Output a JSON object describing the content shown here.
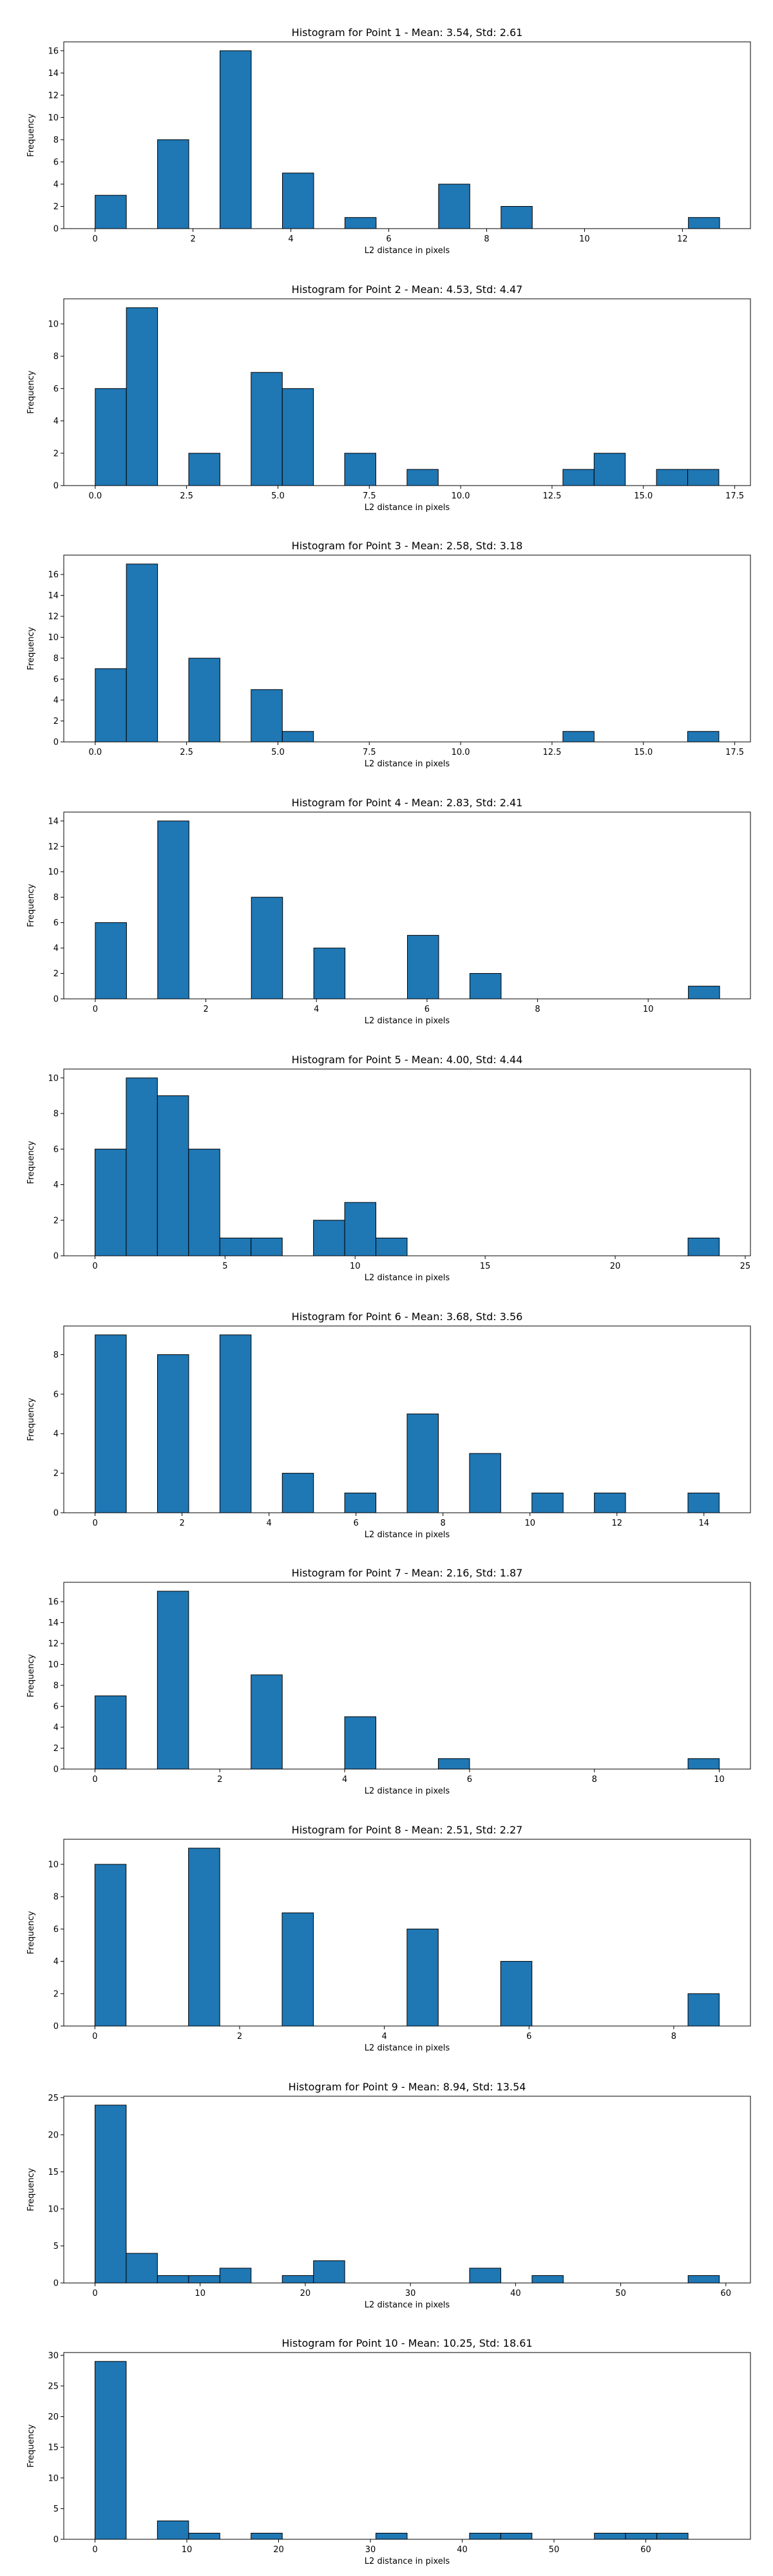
{
  "chart_data": [
    {
      "type": "bar",
      "title": "Histogram for Point 1 - Mean: 3.54, Std: 2.61",
      "xlabel": "L2 distance in pixels",
      "ylabel": "Frequency",
      "xlim": [
        -0.64,
        13.39
      ],
      "ylim": [
        0,
        16.8
      ],
      "xticks": [
        0,
        2,
        4,
        6,
        8,
        10,
        12
      ],
      "yticks": [
        0,
        2,
        4,
        6,
        8,
        10,
        12,
        14,
        16
      ],
      "bin_edges": [
        0.0,
        0.638,
        1.276,
        1.914,
        2.552,
        3.19,
        3.828,
        4.466,
        5.104,
        5.742,
        6.38,
        7.018,
        7.656,
        8.294,
        8.932,
        9.57,
        10.208,
        10.846,
        11.484,
        12.122,
        12.76
      ],
      "counts": [
        3,
        0,
        8,
        0,
        16,
        0,
        5,
        0,
        1,
        0,
        0,
        4,
        0,
        2,
        0,
        0,
        0,
        0,
        0,
        1
      ]
    },
    {
      "type": "bar",
      "title": "Histogram for Point 2 - Mean: 4.53, Std: 4.47",
      "xlabel": "L2 distance in pixels",
      "ylabel": "Frequency",
      "xlim": [
        -0.86,
        17.93
      ],
      "ylim": [
        0,
        11.55
      ],
      "xticks": [
        0.0,
        2.5,
        5.0,
        7.5,
        10.0,
        12.5,
        15.0,
        17.5
      ],
      "yticks": [
        0,
        2,
        4,
        6,
        8,
        10
      ],
      "bin_edges": [
        0.0,
        0.853,
        1.707,
        2.56,
        3.413,
        4.266,
        5.12,
        5.973,
        6.826,
        7.679,
        8.533,
        9.386,
        10.239,
        11.092,
        11.946,
        12.799,
        13.652,
        14.505,
        15.359,
        16.212,
        17.065
      ],
      "counts": [
        6,
        11,
        0,
        2,
        0,
        7,
        6,
        0,
        2,
        0,
        1,
        0,
        0,
        0,
        0,
        1,
        2,
        0,
        1,
        1
      ]
    },
    {
      "type": "bar",
      "title": "Histogram for Point 3 - Mean: 2.58, Std: 3.18",
      "xlabel": "L2 distance in pixels",
      "ylabel": "Frequency",
      "xlim": [
        -0.86,
        17.93
      ],
      "ylim": [
        0,
        17.85
      ],
      "xticks": [
        0.0,
        2.5,
        5.0,
        7.5,
        10.0,
        12.5,
        15.0,
        17.5
      ],
      "yticks": [
        0,
        2,
        4,
        6,
        8,
        10,
        12,
        14,
        16
      ],
      "bin_edges": [
        0.0,
        0.853,
        1.707,
        2.56,
        3.413,
        4.266,
        5.12,
        5.973,
        6.826,
        7.679,
        8.533,
        9.386,
        10.239,
        11.092,
        11.946,
        12.799,
        13.652,
        14.505,
        15.359,
        16.212,
        17.065
      ],
      "counts": [
        7,
        17,
        0,
        8,
        0,
        5,
        1,
        0,
        0,
        0,
        0,
        0,
        0,
        0,
        0,
        1,
        0,
        0,
        0,
        1
      ]
    },
    {
      "type": "bar",
      "title": "Histogram for Point 4 - Mean: 2.83, Std: 2.41",
      "xlabel": "L2 distance in pixels",
      "ylabel": "Frequency",
      "xlim": [
        -0.57,
        11.85
      ],
      "ylim": [
        0,
        14.7
      ],
      "xticks": [
        0,
        2,
        4,
        6,
        8,
        10
      ],
      "yticks": [
        0,
        2,
        4,
        6,
        8,
        10,
        12,
        14
      ],
      "bin_edges": [
        0.0,
        0.565,
        1.129,
        1.694,
        2.258,
        2.823,
        3.388,
        3.952,
        4.517,
        5.081,
        5.646,
        6.211,
        6.775,
        7.34,
        7.904,
        8.469,
        9.034,
        9.598,
        10.163,
        10.727,
        11.292
      ],
      "counts": [
        6,
        0,
        14,
        0,
        0,
        8,
        0,
        4,
        0,
        0,
        5,
        0,
        2,
        0,
        0,
        0,
        0,
        0,
        0,
        1
      ]
    },
    {
      "type": "bar",
      "title": "Histogram for Point 5 - Mean: 4.00, Std: 4.44",
      "xlabel": "L2 distance in pixels",
      "ylabel": "Frequency",
      "xlim": [
        -1.2,
        25.2
      ],
      "ylim": [
        0,
        10.5
      ],
      "xticks": [
        0,
        5,
        10,
        15,
        20,
        25
      ],
      "yticks": [
        0,
        2,
        4,
        6,
        8,
        10
      ],
      "bin_edges": [
        0.0,
        1.2,
        2.4,
        3.6,
        4.8,
        6.0,
        7.2,
        8.4,
        9.6,
        10.8,
        12.0,
        13.2,
        14.4,
        15.6,
        16.8,
        18.0,
        19.2,
        20.4,
        21.6,
        22.8,
        24.0
      ],
      "counts": [
        6,
        10,
        9,
        6,
        1,
        1,
        0,
        2,
        3,
        1,
        0,
        0,
        0,
        0,
        0,
        0,
        0,
        0,
        0,
        1
      ]
    },
    {
      "type": "bar",
      "title": "Histogram for Point 6 - Mean: 3.68, Std: 3.56",
      "xlabel": "L2 distance in pixels",
      "ylabel": "Frequency",
      "xlim": [
        -0.72,
        15.07
      ],
      "ylim": [
        0,
        9.45
      ],
      "xticks": [
        0,
        2,
        4,
        6,
        8,
        10,
        12,
        14
      ],
      "yticks": [
        0,
        2,
        4,
        6,
        8
      ],
      "bin_edges": [
        0.0,
        0.718,
        1.435,
        2.153,
        2.87,
        3.588,
        4.305,
        5.023,
        5.74,
        6.458,
        7.175,
        7.893,
        8.61,
        9.328,
        10.045,
        10.763,
        11.48,
        12.198,
        12.915,
        13.633,
        14.35
      ],
      "counts": [
        9,
        0,
        8,
        0,
        9,
        0,
        2,
        0,
        1,
        0,
        5,
        0,
        3,
        0,
        1,
        0,
        1,
        0,
        0,
        1
      ]
    },
    {
      "type": "bar",
      "title": "Histogram for Point 7 - Mean: 2.16, Std: 1.87",
      "xlabel": "L2 distance in pixels",
      "ylabel": "Frequency",
      "xlim": [
        -0.5,
        10.5
      ],
      "ylim": [
        0,
        17.85
      ],
      "xticks": [
        0,
        2,
        4,
        6,
        8,
        10
      ],
      "yticks": [
        0,
        2,
        4,
        6,
        8,
        10,
        12,
        14,
        16
      ],
      "bin_edges": [
        0.0,
        0.5,
        1.0,
        1.5,
        2.0,
        2.5,
        3.0,
        3.5,
        4.0,
        4.5,
        5.0,
        5.5,
        6.0,
        6.5,
        7.0,
        7.5,
        8.0,
        8.5,
        9.0,
        9.5,
        10.0
      ],
      "counts": [
        7,
        0,
        17,
        0,
        0,
        9,
        0,
        0,
        5,
        0,
        0,
        1,
        0,
        0,
        0,
        0,
        0,
        0,
        0,
        1
      ]
    },
    {
      "type": "bar",
      "title": "Histogram for Point 8 - Mean: 2.51, Std: 2.27",
      "xlabel": "L2 distance in pixels",
      "ylabel": "Frequency",
      "xlim": [
        -0.43,
        9.06
      ],
      "ylim": [
        0,
        11.55
      ],
      "xticks": [
        0,
        2,
        4,
        6,
        8
      ],
      "yticks": [
        0,
        2,
        4,
        6,
        8,
        10
      ],
      "bin_edges": [
        0.0,
        0.431,
        0.863,
        1.294,
        1.726,
        2.157,
        2.588,
        3.02,
        3.451,
        3.883,
        4.314,
        4.745,
        5.177,
        5.608,
        6.04,
        6.471,
        6.902,
        7.334,
        7.765,
        8.197,
        8.628
      ],
      "counts": [
        10,
        0,
        0,
        11,
        0,
        0,
        7,
        0,
        0,
        0,
        6,
        0,
        0,
        4,
        0,
        0,
        0,
        0,
        0,
        2
      ]
    },
    {
      "type": "bar",
      "title": "Histogram for Point 9 - Mean: 8.94, Std: 13.54",
      "xlabel": "L2 distance in pixels",
      "ylabel": "Frequency",
      "xlim": [
        -2.97,
        62.34
      ],
      "ylim": [
        0,
        25.2
      ],
      "xticks": [
        0,
        10,
        20,
        30,
        40,
        50,
        60
      ],
      "yticks": [
        0,
        5,
        10,
        15,
        20,
        25
      ],
      "bin_edges": [
        0.0,
        2.969,
        5.938,
        8.907,
        11.876,
        14.845,
        17.814,
        20.783,
        23.752,
        26.721,
        29.69,
        32.659,
        35.628,
        38.597,
        41.566,
        44.535,
        47.504,
        50.473,
        53.442,
        56.411,
        59.38
      ],
      "counts": [
        24,
        4,
        1,
        1,
        2,
        0,
        1,
        3,
        0,
        0,
        0,
        0,
        2,
        0,
        1,
        0,
        0,
        0,
        0,
        1
      ]
    },
    {
      "type": "bar",
      "title": "Histogram for Point 10 - Mean: 10.25, Std: 18.61",
      "xlabel": "L2 distance in pixels",
      "ylabel": "Frequency",
      "xlim": [
        -3.4,
        71.4
      ],
      "ylim": [
        0,
        30.45
      ],
      "xticks": [
        0,
        10,
        20,
        30,
        40,
        50,
        60
      ],
      "yticks": [
        0,
        5,
        10,
        15,
        20,
        25,
        30
      ],
      "bin_edges": [
        0.0,
        3.4,
        6.8,
        10.2,
        13.6,
        17.0,
        20.4,
        23.8,
        27.2,
        30.6,
        34.0,
        37.4,
        40.8,
        44.2,
        47.6,
        51.0,
        54.4,
        57.8,
        61.2,
        64.6,
        68.0
      ],
      "counts": [
        29,
        0,
        3,
        1,
        0,
        1,
        0,
        0,
        0,
        1,
        0,
        0,
        1,
        1,
        0,
        0,
        1,
        1,
        1,
        0
      ]
    }
  ],
  "colors": {
    "bar_fill": "#1f77b4",
    "bar_edge": "#000000",
    "axis": "#000000",
    "background": "#ffffff"
  }
}
